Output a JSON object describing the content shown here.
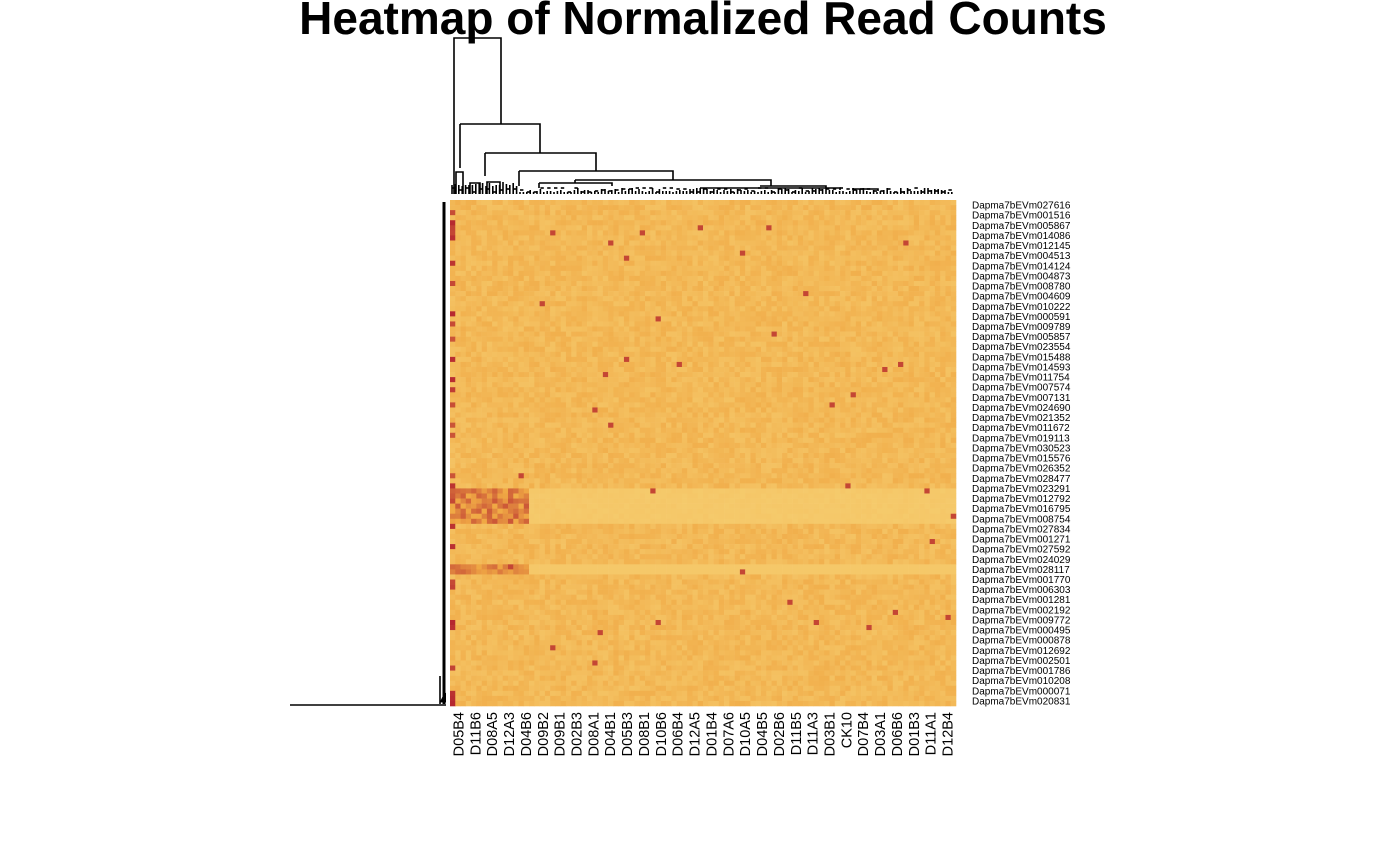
{
  "chart_data": {
    "type": "heatmap",
    "title": "Heatmap of Normalized Read Counts",
    "xlabel": "",
    "ylabel": "",
    "legend": "none",
    "row_dendrogram": true,
    "column_dendrogram": true,
    "colors": {
      "low": "#f6cd6f",
      "mid": "#f0a844",
      "high": "#b5262f",
      "dendrogram": "#000000"
    },
    "row_labels": [
      "Dapma7bEVm027616",
      "Dapma7bEVm001516",
      "Dapma7bEVm005867",
      "Dapma7bEVm014086",
      "Dapma7bEVm012145",
      "Dapma7bEVm004513",
      "Dapma7bEVm014124",
      "Dapma7bEVm004873",
      "Dapma7bEVm008780",
      "Dapma7bEVm004609",
      "Dapma7bEVm010222",
      "Dapma7bEVm000591",
      "Dapma7bEVm009789",
      "Dapma7bEVm005857",
      "Dapma7bEVm023554",
      "Dapma7bEVm015488",
      "Dapma7bEVm014593",
      "Dapma7bEVm011754",
      "Dapma7bEVm007574",
      "Dapma7bEVm007131",
      "Dapma7bEVm024690",
      "Dapma7bEVm021352",
      "Dapma7bEVm011672",
      "Dapma7bEVm019113",
      "Dapma7bEVm030523",
      "Dapma7bEVm015576",
      "Dapma7bEVm026352",
      "Dapma7bEVm028477",
      "Dapma7bEVm023291",
      "Dapma7bEVm012792",
      "Dapma7bEVm016795",
      "Dapma7bEVm008754",
      "Dapma7bEVm027834",
      "Dapma7bEVm001271",
      "Dapma7bEVm027592",
      "Dapma7bEVm024029",
      "Dapma7bEVm028117",
      "Dapma7bEVm001770",
      "Dapma7bEVm006303",
      "Dapma7bEVm001281",
      "Dapma7bEVm002192",
      "Dapma7bEVm009772",
      "Dapma7bEVm000495",
      "Dapma7bEVm000878",
      "Dapma7bEVm012692",
      "Dapma7bEVm002501",
      "Dapma7bEVm001786",
      "Dapma7bEVm010208",
      "Dapma7bEVm000071",
      "Dapma7bEVm020831"
    ],
    "column_labels": [
      "D05B4",
      "D11B6",
      "D08A5",
      "D12A3",
      "D04B6",
      "D09B2",
      "D09B1",
      "D02B3",
      "D08A1",
      "D04B1",
      "D05B3",
      "D08B1",
      "D10B6",
      "D06B4",
      "D12A5",
      "D01B4",
      "D07A6",
      "D10A5",
      "D04B5",
      "D02B6",
      "D11B5",
      "D11A3",
      "D03B1",
      "CK10",
      "D07B4",
      "D03A1",
      "D06B6",
      "D01B3",
      "D11A1",
      "D12B4"
    ]
  }
}
